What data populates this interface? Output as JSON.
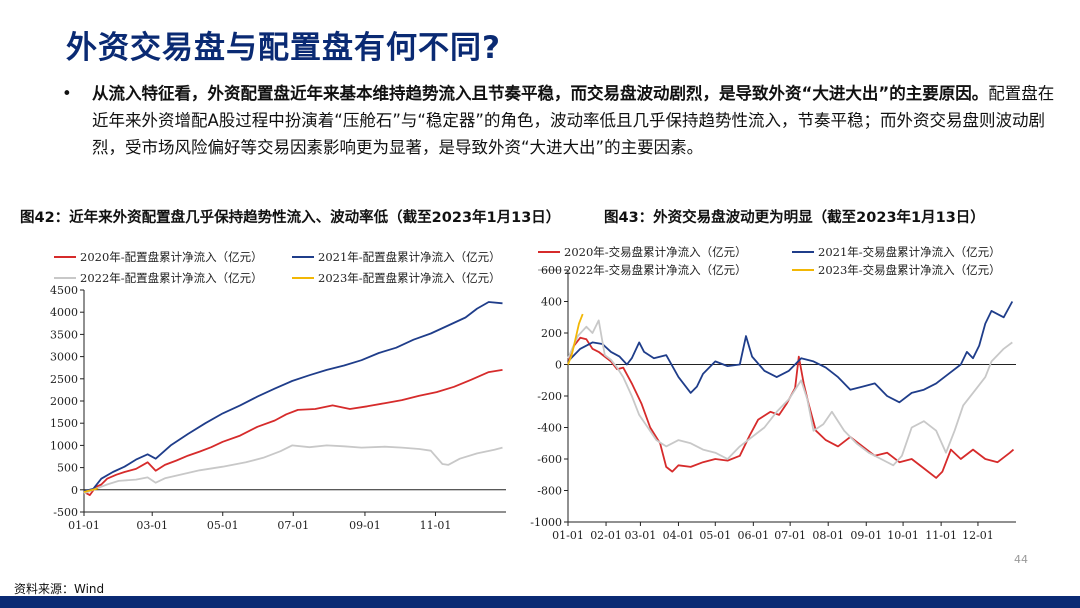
{
  "slide": {
    "title": "外资交易盘与配置盘有何不同?",
    "bullet_bold": "从流入特征看，外资配置盘近年来基本维持趋势流入且节奏平稳，而交易盘波动剧烈，是导致外资“大进大出”的主要原因。",
    "bullet_rest": "配置盘在近年来外资增配A股过程中扮演着“压舱石”与“稳定器”的角色，波动率低且几乎保持趋势性流入，节奏平稳；而外资交易盘则波动剧烈，受市场风险偏好等交易因素影响更为显著，是导致外资“大进大出”的主要因素。",
    "source": "资料来源：Wind",
    "page_number": "44",
    "bullet_symbol": "•"
  },
  "colors": {
    "y2020": "#d62b2b",
    "y2021": "#1f3d8a",
    "y2022": "#c8c8c8",
    "y2023": "#f2b705",
    "title": "#0a2a73"
  },
  "chart_data": [
    {
      "type": "line",
      "title": "图42：近年来外资配置盘几乎保持趋势性流入、波动率低（截至2023年1月13日）",
      "xlabel": "",
      "ylabel": "",
      "ylim": [
        -500,
        4500
      ],
      "yticks": [
        -500,
        0,
        500,
        1000,
        1500,
        2000,
        2500,
        3000,
        3500,
        4000,
        4500
      ],
      "x_ticks": [
        "01-01",
        "03-01",
        "05-01",
        "07-01",
        "09-01",
        "11-01"
      ],
      "x_tick_days": [
        0,
        59,
        120,
        181,
        243,
        304
      ],
      "x_range_days": [
        0,
        365
      ],
      "legend": "top",
      "series": [
        {
          "name": "2020年-配置盘累计净流入（亿元）",
          "color_key": "y2020",
          "points": [
            [
              0,
              -50
            ],
            [
              5,
              -120
            ],
            [
              10,
              60
            ],
            [
              15,
              120
            ],
            [
              20,
              250
            ],
            [
              28,
              340
            ],
            [
              35,
              400
            ],
            [
              45,
              470
            ],
            [
              55,
              620
            ],
            [
              62,
              430
            ],
            [
              70,
              560
            ],
            [
              80,
              660
            ],
            [
              90,
              770
            ],
            [
              100,
              860
            ],
            [
              110,
              960
            ],
            [
              120,
              1080
            ],
            [
              135,
              1220
            ],
            [
              150,
              1420
            ],
            [
              165,
              1560
            ],
            [
              175,
              1700
            ],
            [
              185,
              1800
            ],
            [
              200,
              1820
            ],
            [
              215,
              1900
            ],
            [
              230,
              1820
            ],
            [
              245,
              1880
            ],
            [
              260,
              1950
            ],
            [
              275,
              2020
            ],
            [
              290,
              2120
            ],
            [
              305,
              2200
            ],
            [
              320,
              2320
            ],
            [
              335,
              2480
            ],
            [
              350,
              2650
            ],
            [
              362,
              2700
            ]
          ]
        },
        {
          "name": "2021年-配置盘累计净流入（亿元）",
          "color_key": "y2021",
          "points": [
            [
              0,
              -30
            ],
            [
              8,
              20
            ],
            [
              15,
              250
            ],
            [
              25,
              400
            ],
            [
              35,
              520
            ],
            [
              45,
              680
            ],
            [
              55,
              800
            ],
            [
              62,
              700
            ],
            [
              75,
              1000
            ],
            [
              90,
              1260
            ],
            [
              105,
              1500
            ],
            [
              120,
              1720
            ],
            [
              135,
              1900
            ],
            [
              150,
              2100
            ],
            [
              165,
              2280
            ],
            [
              180,
              2450
            ],
            [
              195,
              2580
            ],
            [
              210,
              2700
            ],
            [
              225,
              2800
            ],
            [
              240,
              2920
            ],
            [
              255,
              3080
            ],
            [
              270,
              3200
            ],
            [
              285,
              3380
            ],
            [
              300,
              3520
            ],
            [
              315,
              3700
            ],
            [
              330,
              3880
            ],
            [
              340,
              4080
            ],
            [
              350,
              4230
            ],
            [
              362,
              4200
            ]
          ]
        },
        {
          "name": "2022年-配置盘累计净流入（亿元）",
          "color_key": "y2022",
          "points": [
            [
              0,
              -80
            ],
            [
              10,
              20
            ],
            [
              20,
              120
            ],
            [
              30,
              200
            ],
            [
              45,
              230
            ],
            [
              55,
              280
            ],
            [
              62,
              160
            ],
            [
              70,
              260
            ],
            [
              85,
              350
            ],
            [
              100,
              440
            ],
            [
              120,
              520
            ],
            [
              140,
              620
            ],
            [
              155,
              720
            ],
            [
              170,
              870
            ],
            [
              180,
              1000
            ],
            [
              195,
              960
            ],
            [
              210,
              1000
            ],
            [
              225,
              980
            ],
            [
              240,
              950
            ],
            [
              260,
              970
            ],
            [
              275,
              950
            ],
            [
              290,
              920
            ],
            [
              300,
              880
            ],
            [
              310,
              580
            ],
            [
              315,
              560
            ],
            [
              325,
              700
            ],
            [
              340,
              820
            ],
            [
              355,
              900
            ],
            [
              362,
              950
            ]
          ]
        },
        {
          "name": "2023年-配置盘累计净流入（亿元）",
          "color_key": "y2023",
          "points": [
            [
              0,
              -50
            ],
            [
              4,
              -20
            ],
            [
              9,
              10
            ],
            [
              12,
              30
            ]
          ]
        }
      ]
    },
    {
      "type": "line",
      "title": "图43：外资交易盘波动更为明显（截至2023年1月13日）",
      "xlabel": "",
      "ylabel": "",
      "ylim": [
        -1000,
        600
      ],
      "yticks": [
        -1000,
        -800,
        -600,
        -400,
        -200,
        0,
        200,
        400,
        600
      ],
      "x_ticks": [
        "01-01",
        "02-01",
        "03-01",
        "04-01",
        "05-01",
        "06-01",
        "07-01",
        "08-01",
        "09-01",
        "10-01",
        "11-01",
        "12-01"
      ],
      "x_tick_days": [
        0,
        31,
        59,
        90,
        120,
        151,
        181,
        212,
        243,
        273,
        304,
        334
      ],
      "x_range_days": [
        0,
        365
      ],
      "legend": "top",
      "series": [
        {
          "name": "2020年-交易盘累计净流入（亿元）",
          "color_key": "y2020",
          "points": [
            [
              0,
              20
            ],
            [
              5,
              120
            ],
            [
              10,
              170
            ],
            [
              15,
              160
            ],
            [
              20,
              100
            ],
            [
              25,
              80
            ],
            [
              30,
              50
            ],
            [
              35,
              20
            ],
            [
              40,
              -30
            ],
            [
              45,
              -20
            ],
            [
              52,
              -120
            ],
            [
              60,
              -250
            ],
            [
              67,
              -400
            ],
            [
              75,
              -500
            ],
            [
              80,
              -650
            ],
            [
              85,
              -680
            ],
            [
              90,
              -640
            ],
            [
              100,
              -650
            ],
            [
              110,
              -620
            ],
            [
              120,
              -600
            ],
            [
              130,
              -610
            ],
            [
              140,
              -580
            ],
            [
              148,
              -450
            ],
            [
              155,
              -350
            ],
            [
              165,
              -300
            ],
            [
              172,
              -320
            ],
            [
              178,
              -250
            ],
            [
              185,
              -150
            ],
            [
              188,
              50
            ],
            [
              192,
              -120
            ],
            [
              196,
              -250
            ],
            [
              202,
              -420
            ],
            [
              210,
              -480
            ],
            [
              220,
              -520
            ],
            [
              230,
              -460
            ],
            [
              240,
              -520
            ],
            [
              250,
              -580
            ],
            [
              260,
              -560
            ],
            [
              270,
              -620
            ],
            [
              280,
              -600
            ],
            [
              290,
              -660
            ],
            [
              300,
              -720
            ],
            [
              305,
              -680
            ],
            [
              312,
              -540
            ],
            [
              320,
              -600
            ],
            [
              330,
              -540
            ],
            [
              340,
              -600
            ],
            [
              350,
              -620
            ],
            [
              360,
              -560
            ],
            [
              363,
              -540
            ]
          ]
        },
        {
          "name": "2021年-交易盘累计净流入（亿元）",
          "color_key": "y2021",
          "points": [
            [
              0,
              20
            ],
            [
              5,
              60
            ],
            [
              10,
              100
            ],
            [
              20,
              140
            ],
            [
              28,
              130
            ],
            [
              35,
              80
            ],
            [
              42,
              50
            ],
            [
              48,
              0
            ],
            [
              52,
              40
            ],
            [
              58,
              140
            ],
            [
              62,
              80
            ],
            [
              70,
              40
            ],
            [
              80,
              60
            ],
            [
              90,
              -80
            ],
            [
              100,
              -180
            ],
            [
              105,
              -140
            ],
            [
              110,
              -60
            ],
            [
              120,
              20
            ],
            [
              130,
              -10
            ],
            [
              140,
              0
            ],
            [
              145,
              180
            ],
            [
              150,
              50
            ],
            [
              160,
              -40
            ],
            [
              170,
              -80
            ],
            [
              180,
              -40
            ],
            [
              190,
              40
            ],
            [
              200,
              20
            ],
            [
              210,
              -20
            ],
            [
              220,
              -80
            ],
            [
              230,
              -160
            ],
            [
              240,
              -140
            ],
            [
              250,
              -120
            ],
            [
              260,
              -200
            ],
            [
              270,
              -240
            ],
            [
              280,
              -180
            ],
            [
              290,
              -160
            ],
            [
              300,
              -120
            ],
            [
              310,
              -60
            ],
            [
              320,
              0
            ],
            [
              325,
              80
            ],
            [
              330,
              40
            ],
            [
              335,
              120
            ],
            [
              340,
              260
            ],
            [
              345,
              340
            ],
            [
              355,
              300
            ],
            [
              362,
              400
            ]
          ]
        },
        {
          "name": "2022年-交易盘累计净流入（亿元）",
          "color_key": "y2022",
          "points": [
            [
              0,
              40
            ],
            [
              8,
              180
            ],
            [
              15,
              240
            ],
            [
              20,
              200
            ],
            [
              25,
              280
            ],
            [
              30,
              60
            ],
            [
              35,
              30
            ],
            [
              40,
              -20
            ],
            [
              45,
              -80
            ],
            [
              52,
              -200
            ],
            [
              58,
              -320
            ],
            [
              65,
              -400
            ],
            [
              72,
              -480
            ],
            [
              80,
              -520
            ],
            [
              90,
              -480
            ],
            [
              100,
              -500
            ],
            [
              110,
              -540
            ],
            [
              120,
              -560
            ],
            [
              130,
              -600
            ],
            [
              140,
              -520
            ],
            [
              150,
              -460
            ],
            [
              160,
              -400
            ],
            [
              170,
              -300
            ],
            [
              180,
              -220
            ],
            [
              190,
              -100
            ],
            [
              195,
              -220
            ],
            [
              200,
              -420
            ],
            [
              208,
              -380
            ],
            [
              215,
              -300
            ],
            [
              225,
              -420
            ],
            [
              235,
              -500
            ],
            [
              245,
              -560
            ],
            [
              255,
              -600
            ],
            [
              265,
              -640
            ],
            [
              272,
              -580
            ],
            [
              280,
              -400
            ],
            [
              290,
              -360
            ],
            [
              300,
              -420
            ],
            [
              308,
              -560
            ],
            [
              315,
              -420
            ],
            [
              322,
              -260
            ],
            [
              330,
              -180
            ],
            [
              340,
              -80
            ],
            [
              345,
              20
            ],
            [
              350,
              60
            ],
            [
              355,
              100
            ],
            [
              362,
              140
            ]
          ]
        },
        {
          "name": "2023年-交易盘累计净流入（亿元）",
          "color_key": "y2023",
          "points": [
            [
              0,
              0
            ],
            [
              3,
              60
            ],
            [
              6,
              160
            ],
            [
              9,
              260
            ],
            [
              12,
              320
            ]
          ]
        }
      ]
    }
  ]
}
